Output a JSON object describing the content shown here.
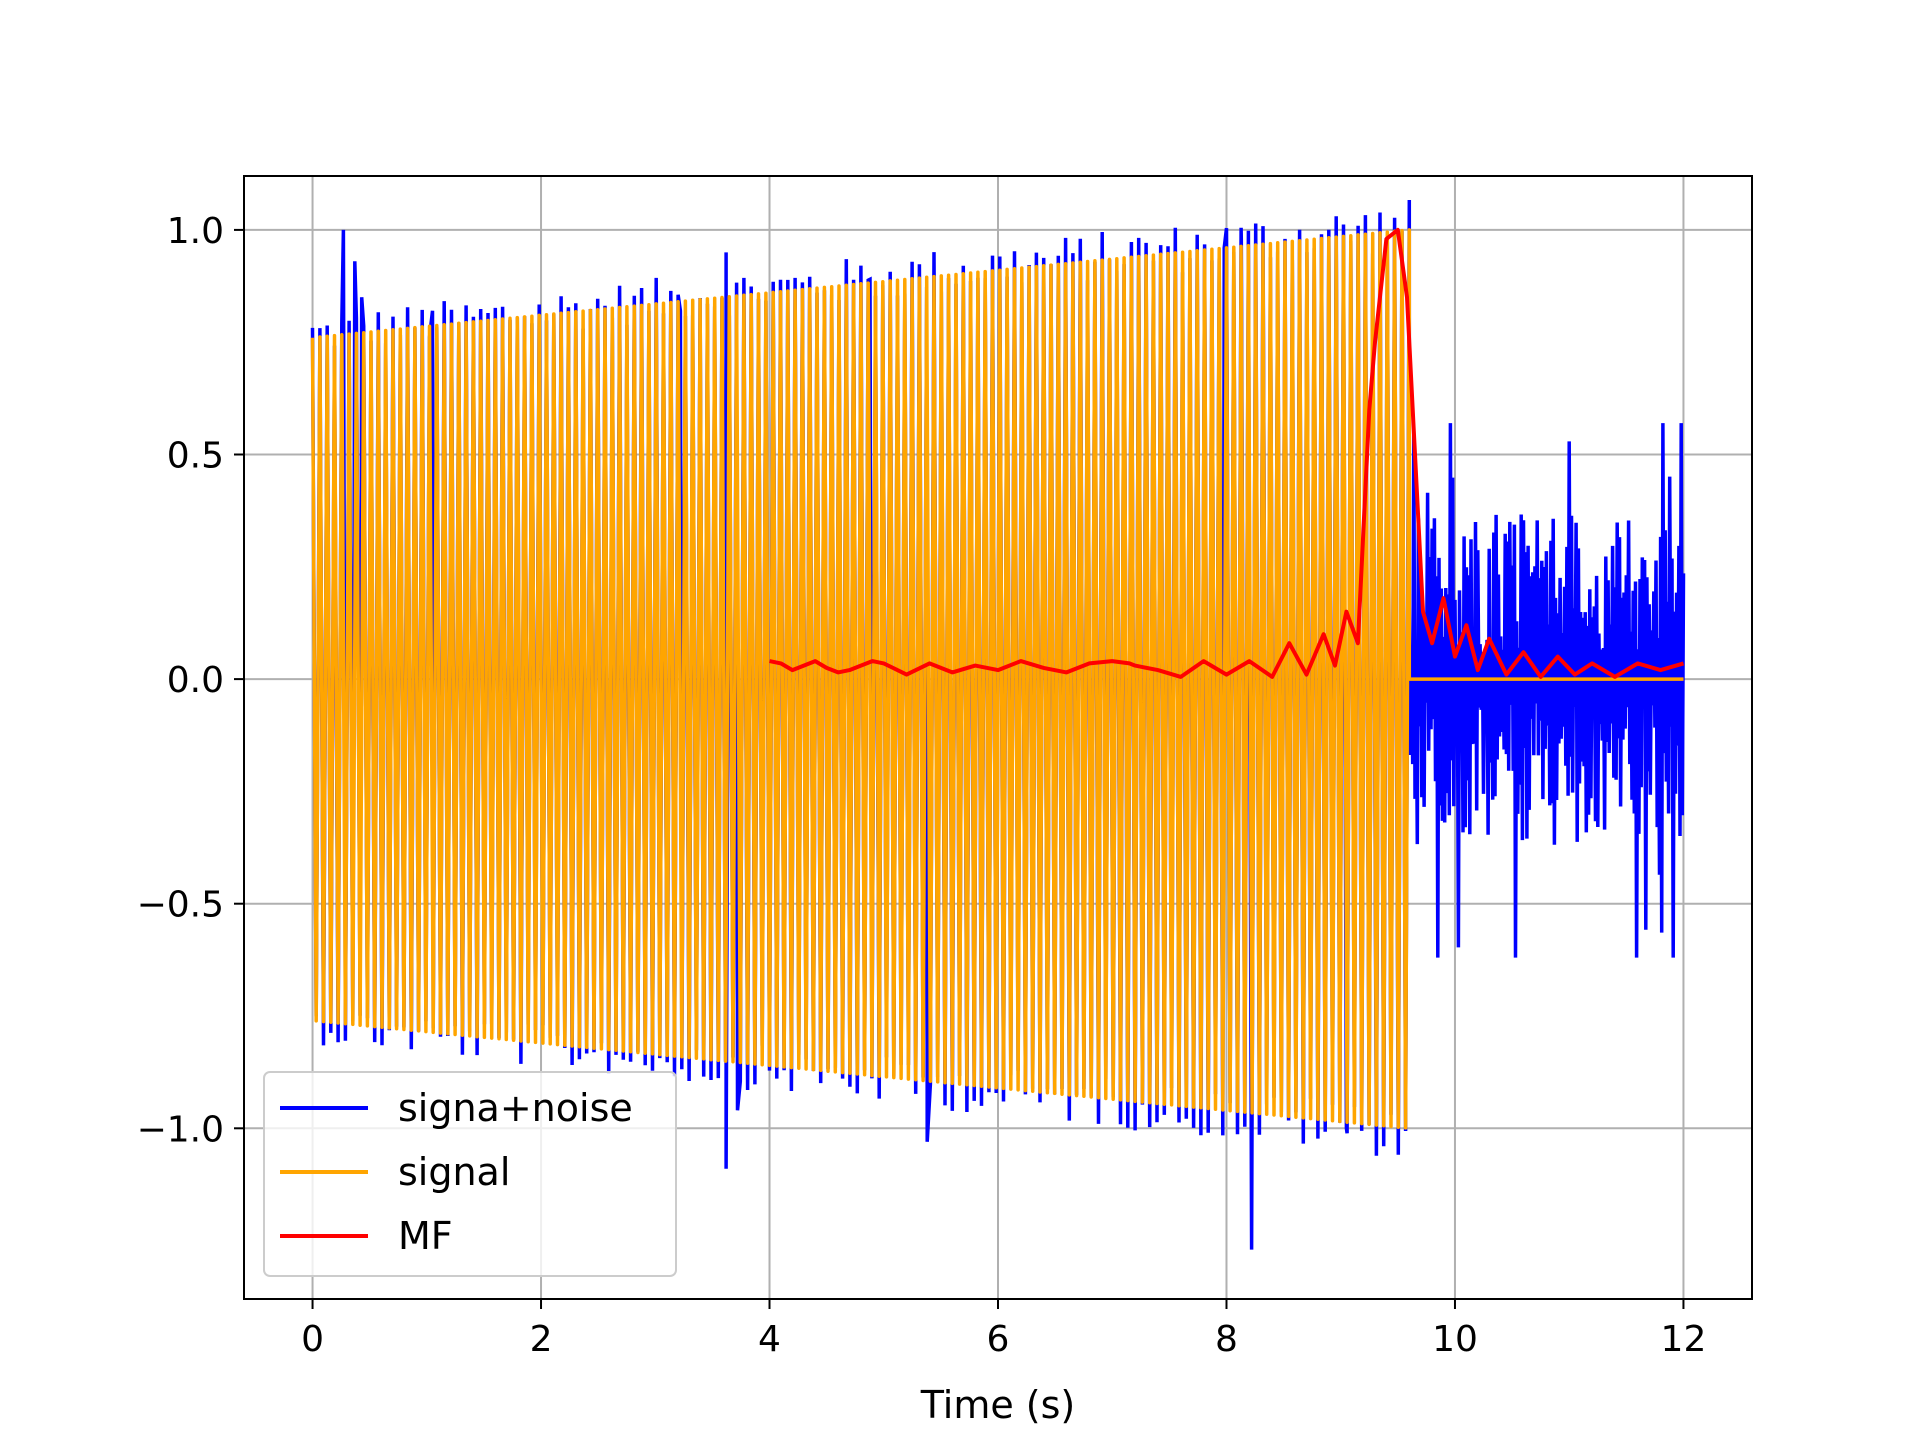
{
  "chart_data": {
    "type": "line",
    "title": "",
    "xlabel": "Time (s)",
    "ylabel": "",
    "xlim": [
      -0.6,
      12.6
    ],
    "ylim": [
      -1.38,
      1.12
    ],
    "grid": true,
    "legend_placement": "lower-left",
    "x_ticks": [
      0,
      2,
      4,
      6,
      8,
      10,
      12
    ],
    "x_tick_labels": [
      "0",
      "2",
      "4",
      "6",
      "8",
      "10",
      "12"
    ],
    "y_ticks": [
      1.0,
      0.5,
      0.0,
      -0.5,
      -1.0
    ],
    "y_tick_labels": [
      "1.0",
      "0.5",
      "0.0",
      "−0.5",
      "−1.0"
    ],
    "series": [
      {
        "name": "signa+noise",
        "color": "#0000ff",
        "description_values": {
          "chirp_region_x": [
            0,
            9.6
          ],
          "noise_region_x": [
            9.6,
            12
          ],
          "noise_y_range": [
            -0.62,
            0.57
          ],
          "spikes": [
            {
              "x": 0.27,
              "y": 1.0
            },
            {
              "x": 0.37,
              "y": 0.93
            },
            {
              "x": 0.43,
              "y": 0.85
            },
            {
              "x": 1.05,
              "y": 0.82
            },
            {
              "x": 3.22,
              "y": 0.82
            },
            {
              "x": 3.62,
              "y": 0.95
            },
            {
              "x": 3.62,
              "y": -1.09
            },
            {
              "x": 3.72,
              "y": -0.96
            },
            {
              "x": 4.88,
              "y": 0.89
            },
            {
              "x": 5.38,
              "y": -1.03
            },
            {
              "x": 7.98,
              "y": 0.96
            },
            {
              "x": 8.13,
              "y": 0.98
            },
            {
              "x": 8.22,
              "y": -1.27
            },
            {
              "x": 9.05,
              "y": -1.0
            }
          ]
        }
      },
      {
        "name": "signal",
        "color": "#ffa500",
        "envelope_start": 0.76,
        "envelope_end": 1.0,
        "x_range": [
          0,
          9.6
        ],
        "zero_tail_x": [
          9.6,
          12
        ]
      },
      {
        "name": "MF",
        "color": "#ff0000",
        "x": [
          4.0,
          4.1,
          4.2,
          4.3,
          4.4,
          4.5,
          4.6,
          4.7,
          4.8,
          4.9,
          5.0,
          5.2,
          5.4,
          5.6,
          5.8,
          6.0,
          6.2,
          6.4,
          6.6,
          6.8,
          7.0,
          7.15,
          7.2,
          7.4,
          7.6,
          7.8,
          8.0,
          8.2,
          8.4,
          8.55,
          8.7,
          8.85,
          8.95,
          9.05,
          9.15,
          9.25,
          9.3,
          9.4,
          9.5,
          9.58,
          9.65,
          9.72,
          9.8,
          9.9,
          10.0,
          10.1,
          10.2,
          10.3,
          10.45,
          10.6,
          10.75,
          10.9,
          11.05,
          11.2,
          11.4,
          11.6,
          11.8,
          12.0
        ],
        "values": [
          0.04,
          0.035,
          0.02,
          0.03,
          0.04,
          0.025,
          0.015,
          0.02,
          0.03,
          0.04,
          0.035,
          0.01,
          0.035,
          0.015,
          0.03,
          0.02,
          0.04,
          0.025,
          0.015,
          0.035,
          0.04,
          0.035,
          0.03,
          0.02,
          0.005,
          0.04,
          0.01,
          0.04,
          0.005,
          0.08,
          0.01,
          0.1,
          0.03,
          0.15,
          0.08,
          0.6,
          0.75,
          0.98,
          1.0,
          0.85,
          0.5,
          0.15,
          0.08,
          0.18,
          0.05,
          0.12,
          0.02,
          0.09,
          0.01,
          0.06,
          0.005,
          0.05,
          0.01,
          0.035,
          0.005,
          0.035,
          0.02,
          0.035
        ]
      }
    ]
  }
}
